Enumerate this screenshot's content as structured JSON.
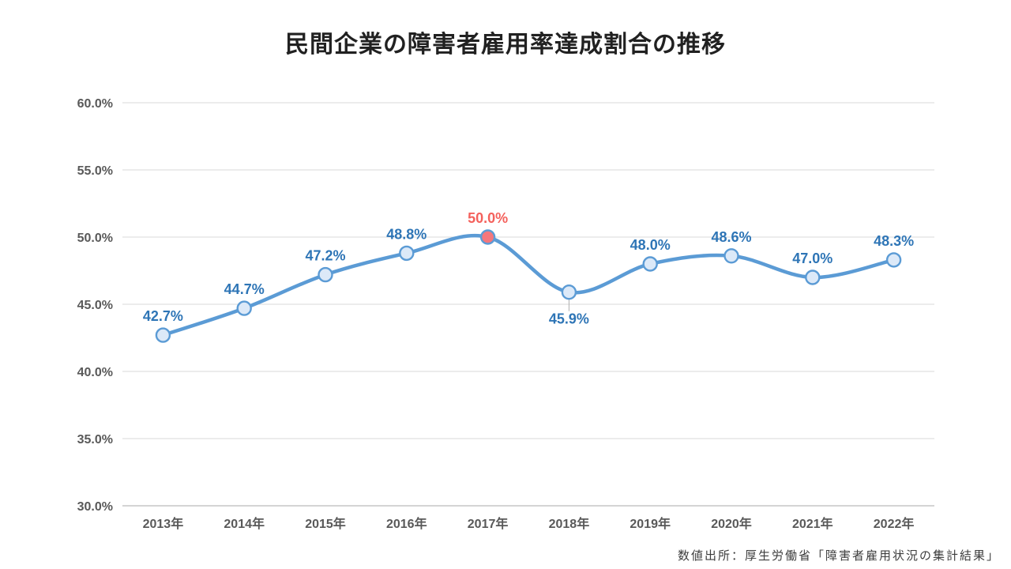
{
  "chart_data": {
    "type": "line",
    "title": "民間企業の障害者雇用率達成割合の推移",
    "source": "数値出所：厚生労働省「障害者雇用状況の集計結果」",
    "categories": [
      "2013年",
      "2014年",
      "2015年",
      "2016年",
      "2017年",
      "2018年",
      "2019年",
      "2020年",
      "2021年",
      "2022年"
    ],
    "values": [
      42.7,
      44.7,
      47.2,
      48.8,
      50.0,
      45.9,
      48.0,
      48.6,
      47.0,
      48.3
    ],
    "value_labels": [
      "42.7%",
      "44.7%",
      "47.2%",
      "48.8%",
      "50.0%",
      "45.9%",
      "48.0%",
      "48.6%",
      "47.0%",
      "48.3%"
    ],
    "highlight_index": 4,
    "label_below_indices": [
      5
    ],
    "ylim": [
      30,
      60
    ],
    "ytick_step": 5,
    "ytick_labels": [
      "30.0%",
      "35.0%",
      "40.0%",
      "45.0%",
      "50.0%",
      "55.0%",
      "60.0%"
    ],
    "xlabel": "",
    "ylabel": "",
    "grid": true,
    "legend": "none",
    "line_smooth": true,
    "colors": {
      "line": "#5B9BD5",
      "marker_fill": "#DCE9F8",
      "marker_stroke": "#5B9BD5",
      "highlight_marker_fill": "#F4777C",
      "data_label": "#2E75B6",
      "highlight_label": "#F4615C",
      "axis_text": "#595959",
      "gridline": "#D9D9D9",
      "axis_line": "#C6C6C6",
      "leader_line": "#AFAFAF",
      "title_text": "#212121",
      "source_text": "#3D3D3D"
    }
  }
}
